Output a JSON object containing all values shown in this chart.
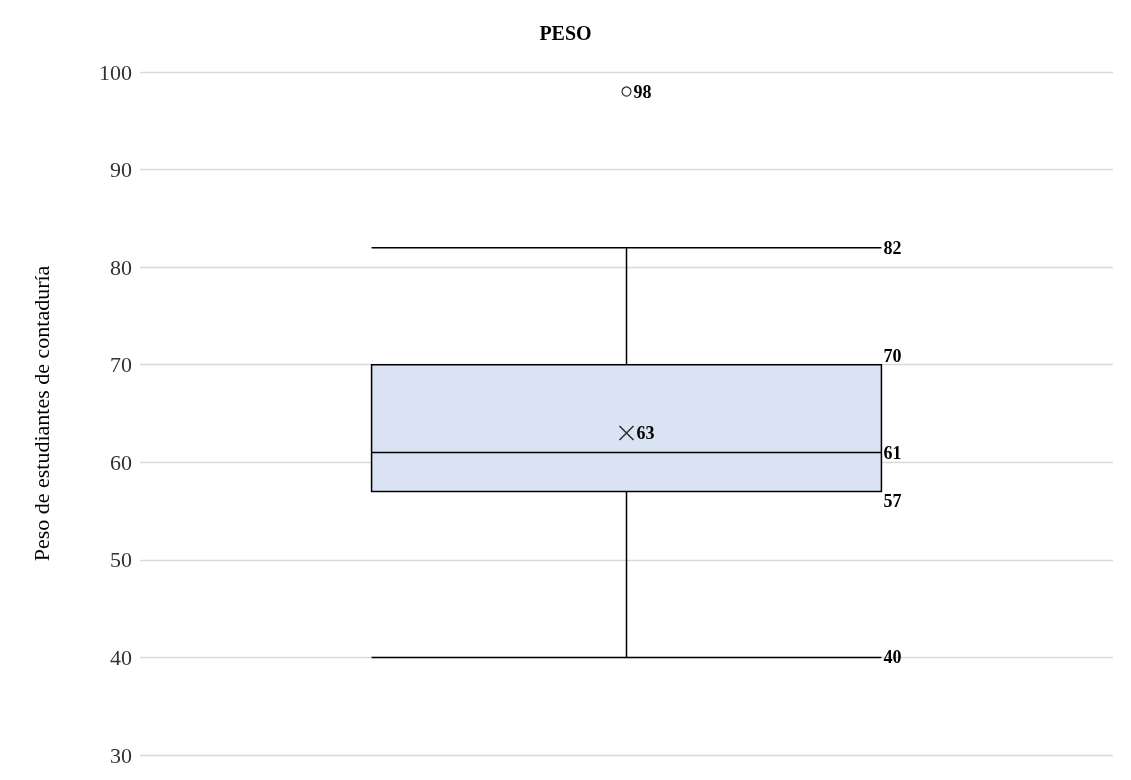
{
  "chart_data": {
    "type": "box",
    "title": "PESO",
    "ylabel": "Peso de estudiantes de contaduría",
    "categories": [
      null
    ],
    "boxes": [
      {
        "low": 40,
        "q1": 57,
        "median": 61,
        "q3": 70,
        "high": 82,
        "mean": 63,
        "outliers": [
          98
        ]
      }
    ],
    "color": "#dae3f3",
    "ylim": [
      30,
      100
    ],
    "yticks": [
      30,
      40,
      50,
      60,
      70,
      80,
      90,
      100
    ],
    "grid": "y",
    "annotations": [
      "98",
      "82",
      "70",
      "63",
      "61",
      "57",
      "40"
    ]
  }
}
